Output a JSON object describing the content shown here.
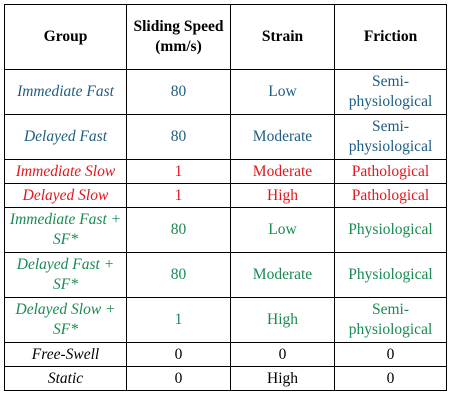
{
  "table": {
    "headers": {
      "group": "Group",
      "speed": "Sliding Speed (mm/s)",
      "strain": "Strain",
      "friction": "Friction"
    },
    "rows": [
      {
        "group": "Immediate Fast",
        "speed": "80",
        "strain": "Low",
        "friction": "Semi-physiological",
        "color": "#1f5d82"
      },
      {
        "group": "Delayed Fast",
        "speed": "80",
        "strain": "Moderate",
        "friction": "Semi-physiological",
        "color": "#1f5d82"
      },
      {
        "group": "Immediate Slow",
        "speed": "1",
        "strain": "Moderate",
        "friction": "Pathological",
        "color": "#e3161b"
      },
      {
        "group": "Delayed Slow",
        "speed": "1",
        "strain": "High",
        "friction": "Pathological",
        "color": "#e3161b"
      },
      {
        "group": "Immediate Fast + SF*",
        "speed": "80",
        "strain": "Low",
        "friction": "Physiological",
        "color": "#1b8a51"
      },
      {
        "group": "Delayed Fast + SF*",
        "speed": "80",
        "strain": "Moderate",
        "friction": "Physiological",
        "color": "#1b8a51"
      },
      {
        "group": "Delayed Slow + SF*",
        "speed": "1",
        "strain": "High",
        "friction": "Semi-physiological",
        "color": "#1b8a51"
      },
      {
        "group": "Free-Swell",
        "speed": "0",
        "strain": "0",
        "friction": "0",
        "color": "#000000"
      },
      {
        "group": "Static",
        "speed": "0",
        "strain": "High",
        "friction": "0",
        "color": "#000000"
      }
    ]
  }
}
